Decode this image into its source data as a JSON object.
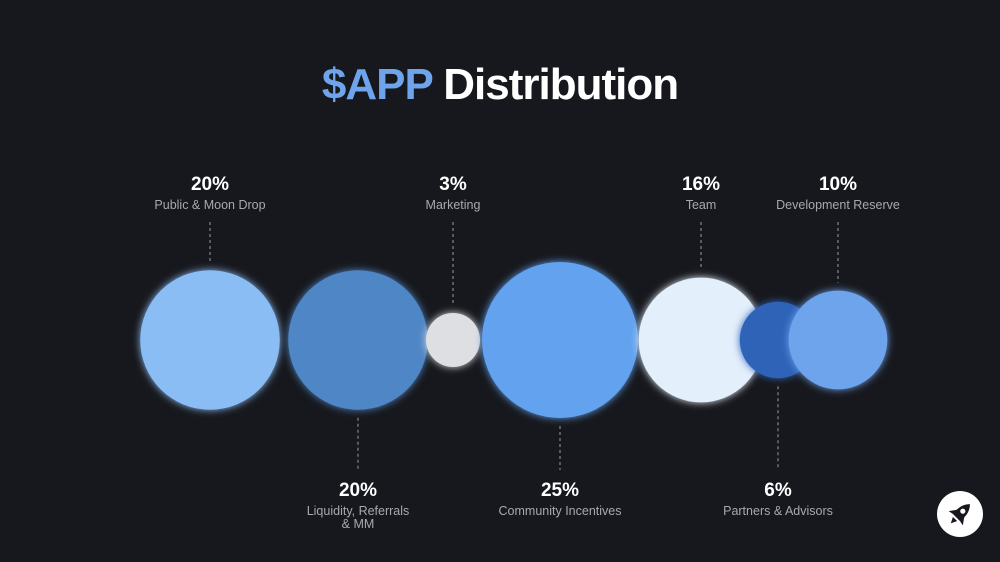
{
  "title": {
    "accent": "$APP",
    "rest": "Distribution"
  },
  "icons": {
    "logo": "rocket-icon"
  },
  "chart_data": {
    "type": "bubble",
    "title": "$APP Distribution",
    "series": [
      {
        "label": "Public & Moon Drop",
        "lines": [
          "Public & Moon Drop"
        ],
        "value": 20,
        "value_label": "20%",
        "label_position": "top",
        "color": "#8bbdf5"
      },
      {
        "label": "Liquidity, Referrals & MM",
        "lines": [
          "Liquidity, Referrals",
          "& MM"
        ],
        "value": 20,
        "value_label": "20%",
        "label_position": "bottom",
        "color": "#4f86c6"
      },
      {
        "label": "Marketing",
        "lines": [
          "Marketing"
        ],
        "value": 3,
        "value_label": "3%",
        "label_position": "top",
        "color": "#dedfe2"
      },
      {
        "label": "Community Incentives",
        "lines": [
          "Community Incentives"
        ],
        "value": 25,
        "value_label": "25%",
        "label_position": "bottom",
        "color": "#62a2ee"
      },
      {
        "label": "Team",
        "lines": [
          "Team"
        ],
        "value": 16,
        "value_label": "16%",
        "label_position": "top",
        "color": "#e4effc"
      },
      {
        "label": "Partners & Advisors",
        "lines": [
          "Partners & Advisors"
        ],
        "value": 6,
        "value_label": "6%",
        "label_position": "bottom",
        "color": "#2f64b8"
      },
      {
        "label": "Development Reserve",
        "lines": [
          "Development Reserve"
        ],
        "value": 10,
        "value_label": "10%",
        "label_position": "top",
        "color": "#6ea4ec"
      }
    ]
  }
}
